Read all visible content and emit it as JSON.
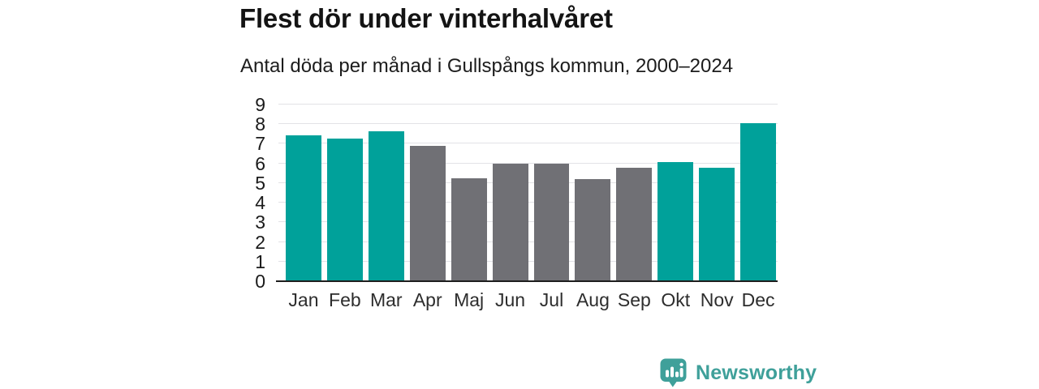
{
  "chart_data": {
    "type": "bar",
    "title": "Flest dör under vinterhalvåret",
    "subtitle": "Antal döda per månad i Gullspångs kommun, 2000–2024",
    "categories": [
      "Jan",
      "Feb",
      "Mar",
      "Apr",
      "Maj",
      "Jun",
      "Jul",
      "Aug",
      "Sep",
      "Okt",
      "Nov",
      "Dec"
    ],
    "values": [
      7.45,
      7.25,
      7.65,
      6.9,
      5.25,
      6.0,
      6.0,
      5.2,
      5.8,
      6.05,
      5.8,
      8.05
    ],
    "bar_color_keys": [
      "winter",
      "winter",
      "winter",
      "summer",
      "summer",
      "summer",
      "summer",
      "summer",
      "summer",
      "winter",
      "winter",
      "winter"
    ],
    "palette": {
      "winter": "#00a19a",
      "summer": "#707075"
    },
    "xlabel": "",
    "ylabel": "",
    "ylim": [
      0,
      9
    ],
    "yticks": [
      0,
      1,
      2,
      3,
      4,
      5,
      6,
      7,
      8,
      9
    ],
    "grid": "horizontal",
    "legend": "none",
    "gridline_color": "#e2e2e6",
    "baseline_color": "#1e1e1e"
  },
  "footer": {
    "brand": "Newsworthy",
    "brand_color": "#3fa09a",
    "logo_icon": "newsworthy-bar-chart-bubble-icon"
  }
}
